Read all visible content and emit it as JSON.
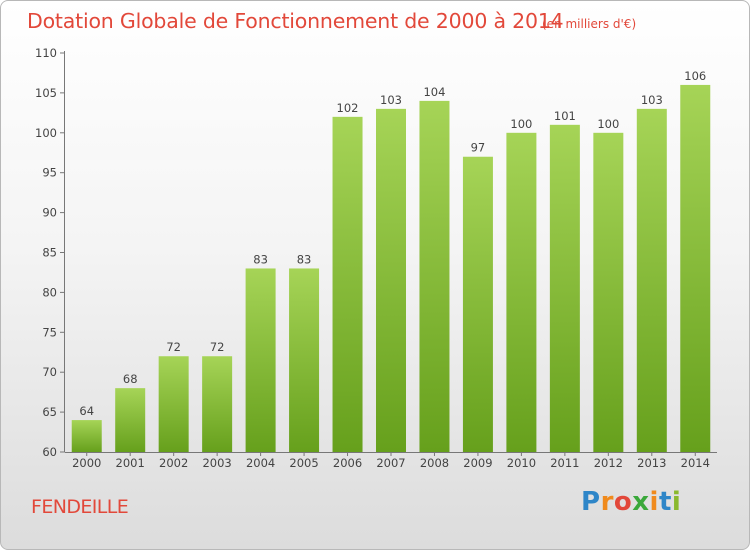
{
  "header": {
    "title": "Dotation Globale de Fonctionnement de 2000 à 2014",
    "subtitle": "(en milliers d'€)"
  },
  "footer": {
    "town": "FENDEILLE",
    "logo": "Proxiti",
    "logo_colors": [
      "#2e86c8",
      "#f08a1c",
      "#e2483a",
      "#3aa83a",
      "#f08a1c",
      "#2e86c8",
      "#8ab92d"
    ]
  },
  "chart_data": {
    "type": "bar",
    "title": "Dotation Globale de Fonctionnement de 2000 à 2014",
    "subtitle": "(en milliers d'€)",
    "xlabel": "",
    "ylabel": "",
    "categories": [
      "2000",
      "2001",
      "2002",
      "2003",
      "2004",
      "2005",
      "2006",
      "2007",
      "2008",
      "2009",
      "2010",
      "2011",
      "2012",
      "2013",
      "2014"
    ],
    "values": [
      64,
      68,
      72,
      72,
      83,
      83,
      102,
      103,
      104,
      97,
      100,
      101,
      100,
      103,
      106
    ],
    "ylim": [
      60,
      110
    ],
    "yticks": [
      60,
      65,
      70,
      75,
      80,
      85,
      90,
      95,
      100,
      105,
      110
    ],
    "grid": false,
    "colors": {
      "bar_top": "#a6d457",
      "bar_bottom": "#66a01c",
      "axis": "#777777",
      "label": "#444444"
    }
  }
}
